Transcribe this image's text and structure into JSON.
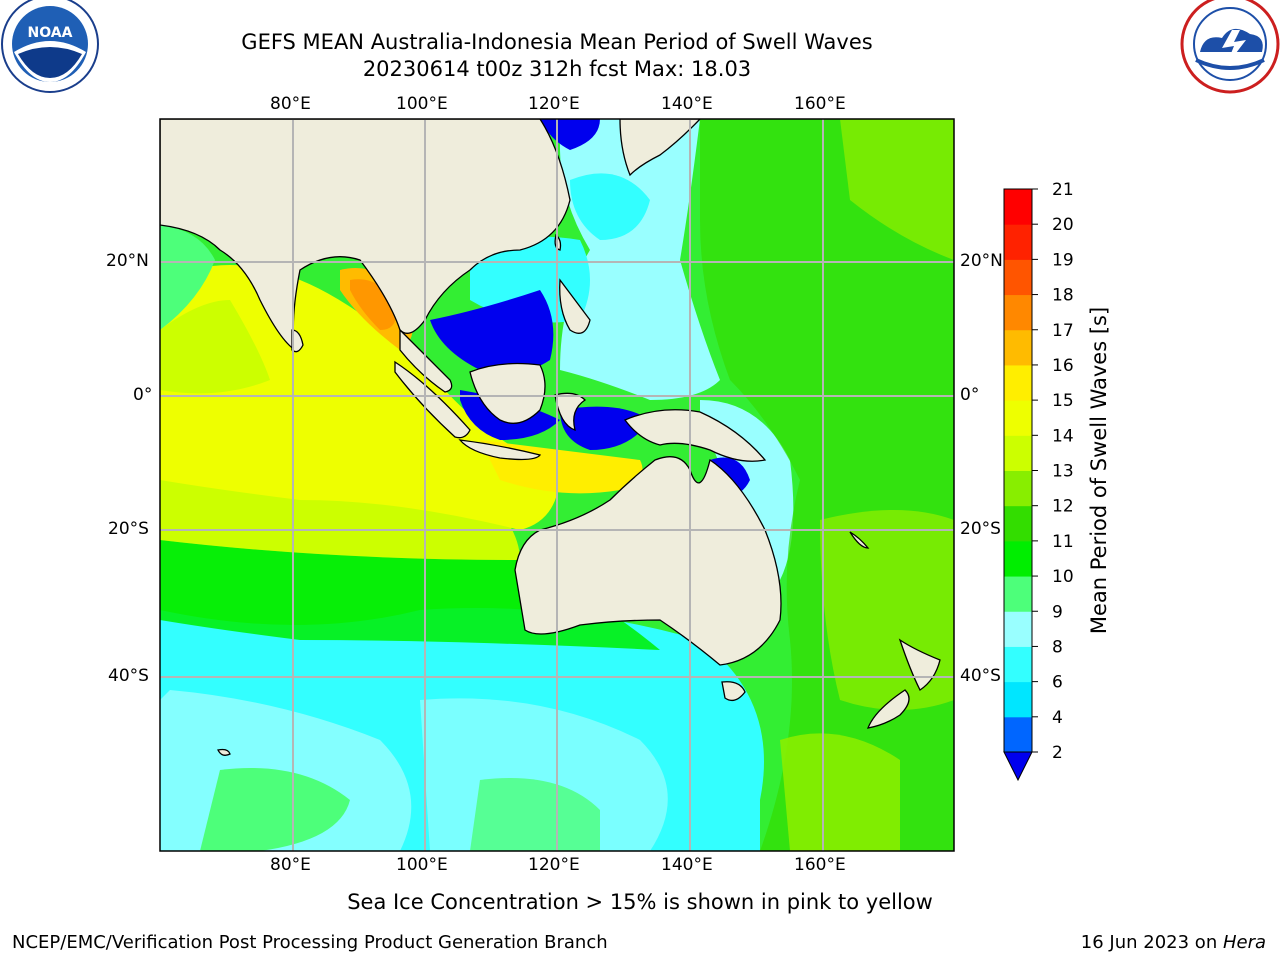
{
  "header": {
    "title_line1": "GEFS MEAN Australia-Indonesia Mean Period of Swell Waves",
    "title_line2": "20230614 t00z 312h fcst   Max: 18.03"
  },
  "logos": {
    "left": {
      "icon": "noaa-logo-icon",
      "text": "NOAA"
    },
    "right": {
      "icon": "nws-logo-icon"
    }
  },
  "map": {
    "lon_labels": [
      "80°E",
      "100°E",
      "120°E",
      "140°E",
      "160°E"
    ],
    "lat_labels": [
      "20°N",
      "0°",
      "20°S",
      "40°S"
    ],
    "ocean_base_color": "#33ee33",
    "land_color": "#efeddc",
    "grid_color": "#b5b5b5"
  },
  "colorbar": {
    "label": "Mean Period of Swell Waves [s]",
    "ticks": [
      "2",
      "4",
      "6",
      "8",
      "9",
      "10",
      "11",
      "12",
      "13",
      "14",
      "15",
      "16",
      "17",
      "18",
      "19",
      "20",
      "21"
    ],
    "colors": [
      "#0066ff",
      "#00e6ff",
      "#33ffff",
      "#99ffff",
      "#4dff7a",
      "#00ee00",
      "#33dd00",
      "#88ee00",
      "#ccff00",
      "#eeff00",
      "#ffee00",
      "#ffbb00",
      "#ff8800",
      "#ff5500",
      "#ff2200",
      "#ff0000"
    ],
    "extend_color": "#0000ee"
  },
  "caption": "Sea Ice Concentration > 15% is shown in pink to yellow",
  "footer": {
    "left": "NCEP/EMC/Verification Post Processing Product Generation Branch",
    "date": "16 Jun 2023 on ",
    "machine": "Hera"
  }
}
